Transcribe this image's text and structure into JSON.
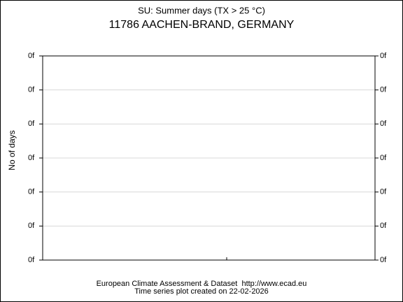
{
  "chart_data": {
    "type": "line",
    "title": "SU: Summer days (TX > 25 °C)",
    "subtitle": "11786 AACHEN-BRAND, GERMANY",
    "y_label": "No of days",
    "footer": [
      "European Climate Assessment & Dataset  http://www.ecad.eu",
      "Time series plot created on 22-02-2026"
    ],
    "series": [],
    "ylim": [
      0,
      6
    ],
    "yticks": [
      {
        "value": 0,
        "label": "0f"
      },
      {
        "value": 1,
        "label": "0f"
      },
      {
        "value": 2,
        "label": "0f"
      },
      {
        "value": 3,
        "label": "0f"
      },
      {
        "value": 4,
        "label": "0f"
      },
      {
        "value": 5,
        "label": "0f"
      },
      {
        "value": 6,
        "label": "0f"
      }
    ],
    "grid": true
  }
}
